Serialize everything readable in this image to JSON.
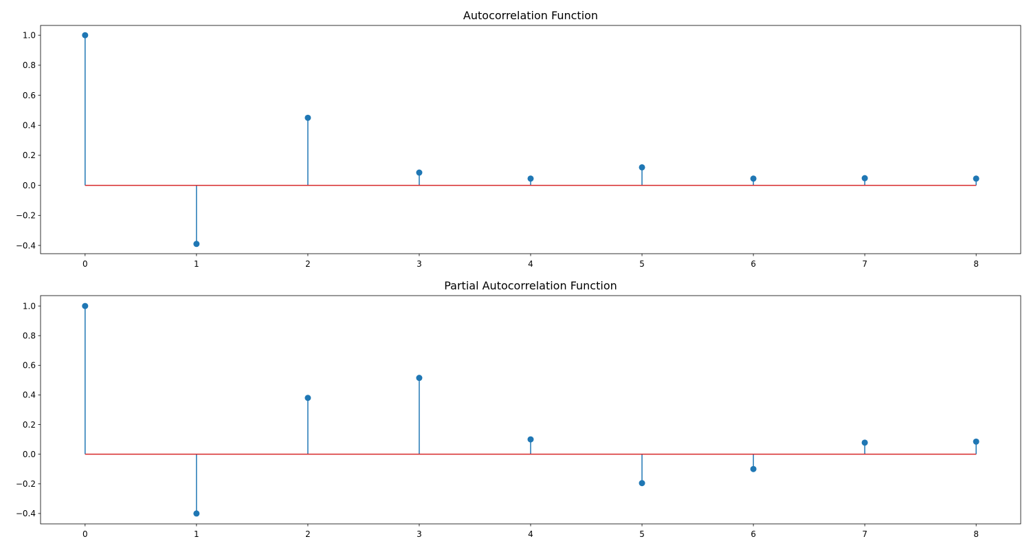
{
  "chart_data": [
    {
      "type": "stem",
      "title": "Autocorrelation Function",
      "xlabel": "",
      "ylabel": "",
      "x": [
        0,
        1,
        2,
        3,
        4,
        5,
        6,
        7,
        8
      ],
      "values": [
        1.0,
        -0.39,
        0.45,
        0.085,
        0.045,
        0.12,
        0.045,
        0.048,
        0.045
      ],
      "xlim": [
        -0.4,
        8.4
      ],
      "ylim": [
        -0.455,
        1.065
      ],
      "xticks": [
        "0",
        "1",
        "2",
        "3",
        "4",
        "5",
        "6",
        "7",
        "8"
      ],
      "yticks": [
        "−0.4",
        "−0.2",
        "0.0",
        "0.2",
        "0.4",
        "0.6",
        "0.8",
        "1.0"
      ],
      "ytick_values": [
        -0.4,
        -0.2,
        0.0,
        0.2,
        0.4,
        0.6,
        0.8,
        1.0
      ],
      "stem_color": "#1f77b4",
      "baseline_color": "#d62728",
      "grid": false
    },
    {
      "type": "stem",
      "title": "Partial Autocorrelation Function",
      "xlabel": "",
      "ylabel": "",
      "x": [
        0,
        1,
        2,
        3,
        4,
        5,
        6,
        7,
        8
      ],
      "values": [
        1.0,
        -0.4,
        0.38,
        0.515,
        0.1,
        -0.195,
        -0.1,
        0.078,
        0.085
      ],
      "xlim": [
        -0.4,
        8.4
      ],
      "ylim": [
        -0.47,
        1.07
      ],
      "xticks": [
        "0",
        "1",
        "2",
        "3",
        "4",
        "5",
        "6",
        "7",
        "8"
      ],
      "yticks": [
        "−0.4",
        "−0.2",
        "0.0",
        "0.2",
        "0.4",
        "0.6",
        "0.8",
        "1.0"
      ],
      "ytick_values": [
        -0.4,
        -0.2,
        0.0,
        0.2,
        0.4,
        0.6,
        0.8,
        1.0
      ],
      "stem_color": "#1f77b4",
      "baseline_color": "#d62728",
      "grid": false
    }
  ]
}
